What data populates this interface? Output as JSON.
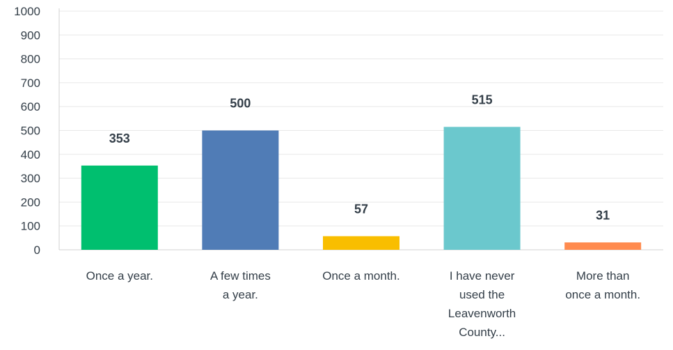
{
  "chart_data": {
    "type": "bar",
    "title": "",
    "xlabel": "",
    "ylabel": "",
    "ylim": [
      0,
      1000
    ],
    "yticks": [
      "0",
      "100",
      "200",
      "300",
      "400",
      "500",
      "600",
      "700",
      "800",
      "900",
      "1000"
    ],
    "grid": true,
    "categories": [
      [
        "Once a year."
      ],
      [
        "A few times",
        "a year."
      ],
      [
        "Once a month."
      ],
      [
        "I have never",
        "used the",
        "Leavenworth",
        "County..."
      ],
      [
        "More than",
        "once a month."
      ]
    ],
    "values": [
      353,
      500,
      57,
      515,
      31
    ],
    "data_labels": [
      "353",
      "500",
      "57",
      "515",
      "31"
    ],
    "colors": [
      "#00bf6f",
      "#507cb6",
      "#f9be00",
      "#6bc8cd",
      "#ff8b4f"
    ]
  }
}
